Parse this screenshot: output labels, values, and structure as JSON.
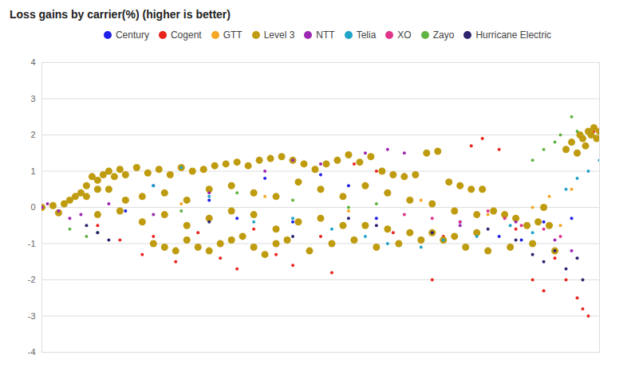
{
  "chart_data": {
    "type": "scatter",
    "title": "Loss gains by carrier(%) (higher is better)",
    "xlim": [
      0,
      100
    ],
    "ylim": [
      -4,
      4
    ],
    "yticks": [
      -4,
      -3,
      -2,
      -1,
      0,
      1,
      2,
      3,
      4
    ],
    "grid": true,
    "legend": "top",
    "tick_labels": "y",
    "series": [
      {
        "name": "Century",
        "color": "#1f1fe8",
        "marker": "circle",
        "x": [
          15,
          20,
          30,
          35,
          40,
          45,
          50,
          55,
          60,
          65,
          75,
          82,
          86,
          90,
          95
        ],
        "values": [
          -0.1,
          0.6,
          0.2,
          -0.3,
          0.8,
          -0.4,
          0.9,
          0.6,
          -0.3,
          0.9,
          -0.4,
          -0.8,
          -0.9,
          -0.4,
          -0.3
        ]
      },
      {
        "name": "Cogent",
        "color": "#e8231b",
        "marker": "circle",
        "x": [
          10,
          14,
          18,
          20,
          24,
          28,
          32,
          35,
          38,
          42,
          45,
          48,
          50,
          52,
          56,
          60,
          63,
          70,
          72,
          77,
          79,
          82,
          85,
          88,
          90,
          92,
          94,
          96,
          97,
          98,
          99
        ],
        "values": [
          -0.5,
          -0.9,
          -1.3,
          -0.8,
          -1.5,
          -0.7,
          -1.4,
          -1.7,
          -0.6,
          -1.3,
          -1.6,
          -1.2,
          -0.8,
          -1.8,
          1.2,
          1.0,
          -0.7,
          -2.0,
          -0.8,
          1.7,
          1.9,
          1.6,
          -0.6,
          -2.0,
          -2.3,
          -1.4,
          -2.0,
          -2.5,
          -2.8,
          -3.0,
          2.1
        ]
      },
      {
        "name": "GTT",
        "color": "#f5a623",
        "marker": "circle",
        "x": [
          25,
          40,
          55,
          68,
          80,
          85,
          88,
          91,
          93,
          95
        ],
        "values": [
          0.1,
          0.3,
          -0.1,
          0.2,
          -0.2,
          -0.3,
          0.0,
          0.3,
          -0.5,
          0.5
        ]
      },
      {
        "name": "Level 3",
        "color": "#bf9b0f",
        "marker": "large_circle",
        "x": [
          0,
          2,
          3,
          4,
          5,
          6,
          7,
          8,
          9,
          10,
          11,
          12,
          13,
          14,
          15,
          17,
          19,
          21,
          23,
          25,
          27,
          29,
          31,
          33,
          35,
          37,
          39,
          41,
          43,
          45,
          47,
          49,
          51,
          53,
          55,
          57,
          59,
          61,
          63,
          65,
          67,
          69,
          71,
          73,
          75,
          77,
          79,
          81,
          83,
          85,
          87,
          89,
          8,
          10,
          12,
          15,
          18,
          22,
          26,
          30,
          34,
          38,
          42,
          46,
          50,
          54,
          58,
          62,
          66,
          70,
          74,
          78,
          10,
          14,
          18,
          22,
          26,
          30,
          34,
          38,
          42,
          46,
          50,
          54,
          58,
          62,
          66,
          70,
          74,
          78,
          20,
          22,
          24,
          26,
          28,
          30,
          32,
          34,
          36,
          38,
          40,
          42,
          44,
          48,
          52,
          56,
          60,
          64,
          68,
          72,
          76,
          80,
          84,
          88,
          90,
          91,
          92,
          94,
          95,
          96,
          96.5,
          97,
          97.5,
          98,
          98.5,
          99,
          99.5,
          100
        ],
        "values": [
          0,
          0.05,
          -0.15,
          0.1,
          0.2,
          0.3,
          0.4,
          0.6,
          0.85,
          0.75,
          0.9,
          1.0,
          0.85,
          1.05,
          0.9,
          1.1,
          0.95,
          1.05,
          0.9,
          1.1,
          1.0,
          1.05,
          1.15,
          1.2,
          1.25,
          1.15,
          1.3,
          1.35,
          1.4,
          1.3,
          1.2,
          1.05,
          1.2,
          1.3,
          1.45,
          1.25,
          1.4,
          1.0,
          0.9,
          0.85,
          0.9,
          1.5,
          1.55,
          0.7,
          0.6,
          0.5,
          0.5,
          -0.1,
          -0.2,
          -0.3,
          -0.5,
          -0.4,
          0.3,
          0.5,
          0.5,
          0.2,
          0.3,
          0.4,
          0.2,
          0.5,
          0.6,
          0.4,
          0.3,
          0.7,
          0.5,
          0.3,
          0.6,
          0.4,
          0.2,
          0.1,
          -0.1,
          -0.2,
          -0.2,
          -0.1,
          -0.4,
          -0.2,
          -0.5,
          -0.3,
          -0.1,
          -0.2,
          -0.6,
          -0.4,
          -0.3,
          -0.5,
          -0.5,
          -0.6,
          -0.7,
          -0.7,
          -0.8,
          -0.7,
          -1.0,
          -1.1,
          -1.2,
          -0.9,
          -1.1,
          -1.2,
          -1.0,
          -0.9,
          -0.8,
          -1.1,
          -1.3,
          -1.0,
          -0.9,
          -1.2,
          -1.0,
          -0.9,
          -1.1,
          -1.0,
          -0.9,
          -0.9,
          -1.1,
          -1.2,
          -1.1,
          -1.0,
          0.0,
          -0.5,
          -1.2,
          1.6,
          1.8,
          1.5,
          2.0,
          1.9,
          1.7,
          2.1,
          2.0,
          2.2,
          1.9,
          2.1
        ]
      },
      {
        "name": "NTT",
        "color": "#9c27b0",
        "marker": "circle",
        "x": [
          0,
          1,
          3,
          5,
          7,
          12,
          20,
          30,
          40,
          45,
          50,
          58,
          62,
          65,
          75,
          85,
          92,
          95
        ],
        "values": [
          0,
          0.1,
          -0.1,
          -0.3,
          -0.2,
          0.1,
          -0.2,
          0.4,
          1.0,
          1.3,
          1.2,
          1.5,
          1.6,
          1.5,
          -0.5,
          -0.4,
          -0.9,
          -1.2
        ]
      },
      {
        "name": "Telia",
        "color": "#1fa3c9",
        "marker": "circle",
        "x": [
          20,
          25,
          30,
          38,
          45,
          52,
          58,
          62,
          68,
          72,
          78,
          84,
          88,
          94,
          96,
          98,
          100
        ],
        "values": [
          0.6,
          1.1,
          0.3,
          -0.4,
          -0.3,
          -0.6,
          -0.8,
          -1.0,
          -1.1,
          -0.9,
          -0.8,
          -0.5,
          -0.7,
          0.5,
          0.8,
          1.0,
          1.3
        ]
      },
      {
        "name": "XO",
        "color": "#e0338a",
        "marker": "circle",
        "x": [
          65,
          70,
          75,
          80,
          83,
          86,
          90,
          93
        ],
        "values": [
          -0.2,
          -0.3,
          -0.4,
          -0.1,
          -0.3,
          -0.5,
          -0.6,
          -0.8
        ]
      },
      {
        "name": "Zayo",
        "color": "#5fb341",
        "marker": "circle",
        "x": [
          5,
          8,
          10,
          25,
          35,
          45,
          55,
          60,
          88,
          90,
          92,
          93,
          95,
          96
        ],
        "values": [
          -0.6,
          -0.8,
          -0.7,
          -0.1,
          0.4,
          0.2,
          0.0,
          0.1,
          1.3,
          1.6,
          1.8,
          2.0,
          2.5,
          2.1
        ]
      },
      {
        "name": "Hurricane Electric",
        "color": "#2b2370",
        "marker": "circle",
        "x": [
          8,
          10,
          12,
          30,
          45,
          55,
          60,
          70,
          80,
          85,
          88,
          90,
          92,
          94,
          96,
          97
        ],
        "values": [
          -0.5,
          -0.7,
          -0.9,
          -0.4,
          -0.8,
          -0.3,
          -0.5,
          -0.7,
          -0.6,
          -0.9,
          -1.3,
          -1.5,
          -1.2,
          -1.7,
          -1.4,
          -2.0
        ]
      }
    ]
  }
}
